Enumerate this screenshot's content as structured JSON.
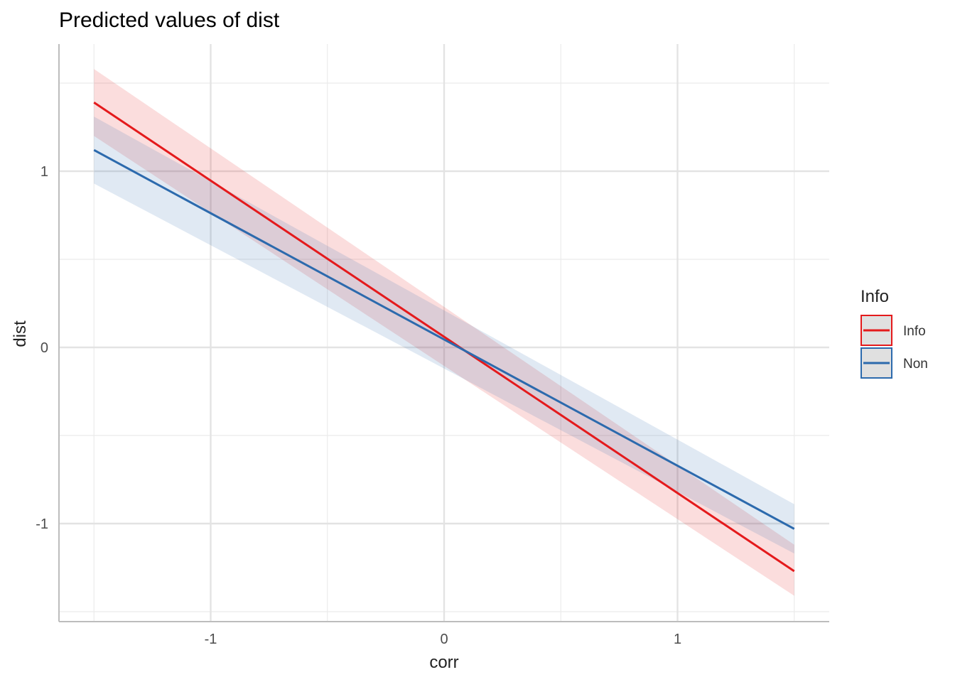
{
  "chart_data": {
    "type": "line",
    "title": "Predicted values of dist",
    "xlabel": "corr",
    "ylabel": "dist",
    "xlim": [
      -1.65,
      1.65
    ],
    "ylim": [
      -1.55,
      1.72
    ],
    "x_ticks": [
      -1,
      0,
      1
    ],
    "x_tick_labels": [
      "-1",
      "0",
      "1"
    ],
    "y_ticks": [
      -1,
      0,
      1
    ],
    "y_tick_labels": [
      "-1",
      "0",
      "1"
    ],
    "x_minor": [
      -1.5,
      -0.5,
      0.5,
      1.5
    ],
    "y_minor": [
      -1.5,
      -0.5,
      0.5,
      1.5
    ],
    "grid": true,
    "legend": {
      "title": "Info",
      "position": "right"
    },
    "x": [
      -1.5,
      1.5
    ],
    "series": [
      {
        "name": "Info",
        "color": "#e41a1c",
        "values": [
          1.39,
          -1.27
        ],
        "ci_low": [
          1.2,
          -1.41
        ],
        "ci_high": [
          1.58,
          -1.12
        ]
      },
      {
        "name": "Non",
        "color": "#2c6aad",
        "values": [
          1.12,
          -1.03
        ],
        "ci_low": [
          0.93,
          -1.17
        ],
        "ci_high": [
          1.31,
          -0.89
        ]
      }
    ]
  }
}
